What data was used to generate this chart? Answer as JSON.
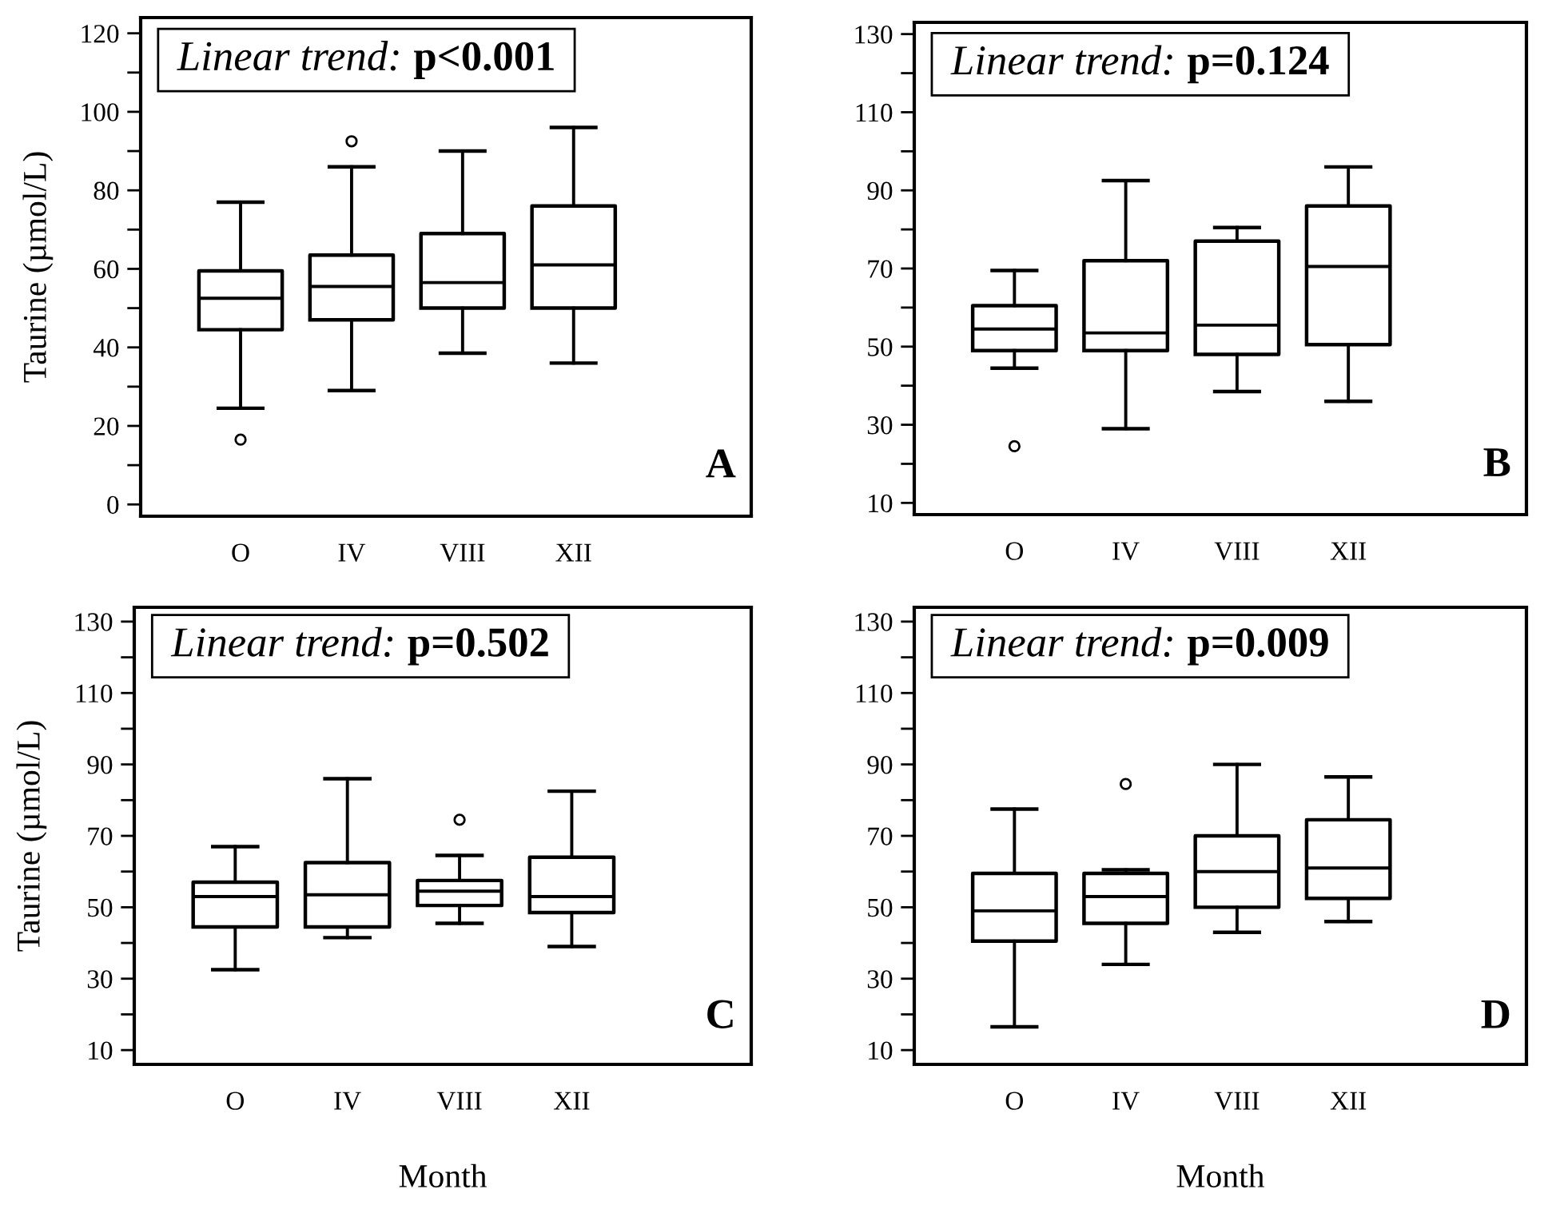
{
  "chart_data": [
    {
      "type": "box",
      "ylabel": "Taurine (µmol/L)",
      "categories": [
        "O",
        "IV",
        "VIII",
        "XII"
      ],
      "ylim": [
        -3,
        124
      ],
      "yticks": [
        0,
        {
          "value": 10,
          "label": null
        },
        20,
        {
          "value": 30,
          "label": null
        },
        40,
        {
          "value": 50,
          "label": null
        },
        60,
        {
          "value": 70,
          "label": null
        },
        80,
        {
          "value": 90,
          "label": null
        },
        100,
        {
          "value": 110,
          "label": null
        },
        120
      ],
      "annotations": [
        "Linear trend:",
        "p<0.001",
        "A"
      ],
      "boxes": [
        {
          "low": 24.5,
          "q1": 44.5,
          "median": 52.5,
          "q3": 59.5,
          "high": 77,
          "outliers": [
            16.5
          ]
        },
        {
          "low": 29,
          "q1": 47,
          "median": 55.5,
          "q3": 63.5,
          "high": 86,
          "outliers": [
            92.5
          ]
        },
        {
          "low": 38.5,
          "q1": 50,
          "median": 56.5,
          "q3": 69,
          "high": 90
        },
        {
          "low": 36,
          "q1": 50,
          "median": 61,
          "q3": 76,
          "high": 96
        }
      ]
    },
    {
      "type": "box",
      "categories": [
        "O",
        "IV",
        "VIII",
        "XII"
      ],
      "ylim": [
        7,
        133
      ],
      "yticks": [
        10,
        {
          "value": 20,
          "label": null
        },
        30,
        {
          "value": 40,
          "label": null
        },
        50,
        {
          "value": 60,
          "label": null
        },
        70,
        {
          "value": 80,
          "label": null
        },
        90,
        {
          "value": 100,
          "label": null
        },
        110,
        {
          "value": 120,
          "label": null
        },
        130
      ],
      "annotations": [
        "Linear trend:",
        "p=0.124",
        "B"
      ],
      "boxes": [
        {
          "low": 44.5,
          "q1": 49,
          "median": 54.5,
          "q3": 60.5,
          "high": 69.5,
          "outliers": [
            24.5
          ]
        },
        {
          "low": 29,
          "q1": 49,
          "median": 53.5,
          "q3": 72,
          "high": 92.5
        },
        {
          "low": 38.5,
          "q1": 48,
          "median": 55.5,
          "q3": 77,
          "high": 80.5
        },
        {
          "low": 36,
          "q1": 50.5,
          "median": 70.5,
          "q3": 86,
          "high": 96
        }
      ]
    },
    {
      "type": "box",
      "ylabel": "Taurine (µmol/L)",
      "xlabel": "Month",
      "categories": [
        "O",
        "IV",
        "VIII",
        "XII"
      ],
      "ylim": [
        6,
        134
      ],
      "yticks": [
        10,
        {
          "value": 20,
          "label": null
        },
        30,
        {
          "value": 40,
          "label": null
        },
        50,
        {
          "value": 60,
          "label": null
        },
        70,
        {
          "value": 80,
          "label": null
        },
        90,
        {
          "value": 100,
          "label": null
        },
        110,
        {
          "value": 120,
          "label": null
        },
        130
      ],
      "annotations": [
        "Linear trend:",
        "p=0.502",
        "C"
      ],
      "boxes": [
        {
          "low": 32.5,
          "q1": 44.5,
          "median": 53,
          "q3": 57,
          "high": 67
        },
        {
          "low": 41.5,
          "q1": 44.5,
          "median": 53.5,
          "q3": 62.5,
          "high": 86
        },
        {
          "low": 45.5,
          "q1": 50.5,
          "median": 54.5,
          "q3": 57.5,
          "high": 64.5,
          "outliers": [
            74.5
          ]
        },
        {
          "low": 39,
          "q1": 48.5,
          "median": 53,
          "q3": 64,
          "high": 82.5
        }
      ]
    },
    {
      "type": "box",
      "xlabel": "Month",
      "categories": [
        "O",
        "IV",
        "VIII",
        "XII"
      ],
      "ylim": [
        6,
        134
      ],
      "yticks": [
        10,
        {
          "value": 20,
          "label": null
        },
        30,
        {
          "value": 40,
          "label": null
        },
        50,
        {
          "value": 60,
          "label": null
        },
        70,
        {
          "value": 80,
          "label": null
        },
        90,
        {
          "value": 100,
          "label": null
        },
        110,
        {
          "value": 120,
          "label": null
        },
        130
      ],
      "annotations": [
        "Linear trend:",
        "p=0.009",
        "D"
      ],
      "boxes": [
        {
          "low": 16.5,
          "q1": 40.5,
          "median": 49,
          "q3": 59.5,
          "high": 77.5
        },
        {
          "low": 34,
          "q1": 45.5,
          "median": 53,
          "q3": 59.5,
          "high": 60.5,
          "outliers": [
            84.5
          ]
        },
        {
          "low": 43,
          "q1": 50,
          "median": 60,
          "q3": 70,
          "high": 90
        },
        {
          "low": 46,
          "q1": 52.5,
          "median": 61,
          "q3": 74.5,
          "high": 86.5
        }
      ]
    }
  ]
}
